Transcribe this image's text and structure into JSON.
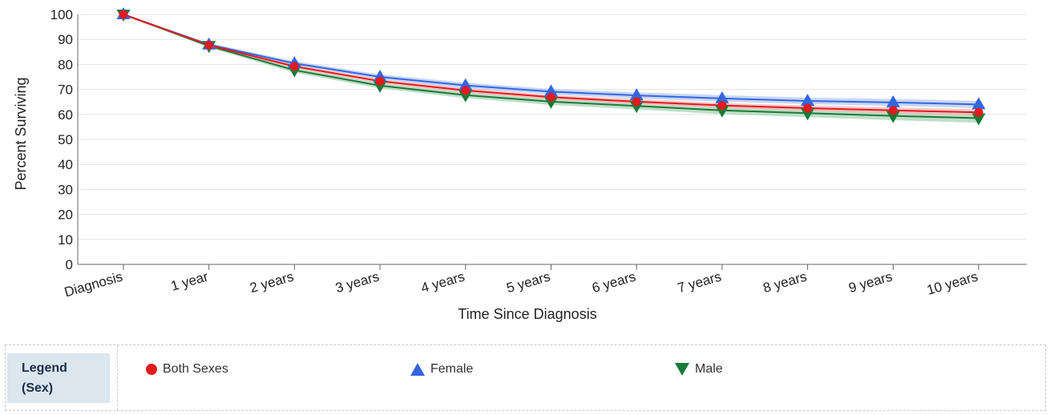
{
  "chart_data": {
    "type": "line",
    "xlabel": "Time Since Diagnosis",
    "ylabel": "Percent Surviving",
    "ylim": [
      0,
      100
    ],
    "yticks": [
      0,
      10,
      20,
      30,
      40,
      50,
      60,
      70,
      80,
      90,
      100
    ],
    "categories": [
      "Diagnosis",
      "1 year",
      "2 years",
      "3 years",
      "4 years",
      "5 years",
      "6 years",
      "7 years",
      "8 years",
      "9 years",
      "10 years"
    ],
    "grid": true,
    "series": [
      {
        "name": "Both Sexes",
        "marker": "circle",
        "color": "#e41a1c",
        "band_color": "#f4b6b6",
        "values": [
          100,
          87.7,
          79.2,
          73.3,
          69.6,
          66.9,
          65.1,
          63.6,
          62.5,
          61.6,
          60.8
        ],
        "lower": [
          100,
          87.2,
          78.5,
          72.5,
          68.7,
          66.0,
          64.1,
          62.6,
          61.4,
          60.4,
          59.6
        ],
        "upper": [
          100,
          88.2,
          79.9,
          74.1,
          70.5,
          67.8,
          66.1,
          64.6,
          63.6,
          62.8,
          62.0
        ]
      },
      {
        "name": "Female",
        "marker": "triangle-up",
        "color": "#3366e0",
        "band_color": "#b4c8f0",
        "values": [
          100,
          87.9,
          80.4,
          75.0,
          71.6,
          69.1,
          67.6,
          66.4,
          65.4,
          64.8,
          64.0
        ],
        "lower": [
          100,
          87.3,
          79.5,
          74.0,
          70.5,
          68.0,
          66.4,
          65.1,
          64.1,
          63.4,
          62.6
        ],
        "upper": [
          100,
          88.5,
          81.3,
          76.0,
          72.7,
          70.2,
          68.8,
          67.7,
          66.7,
          66.2,
          65.4
        ]
      },
      {
        "name": "Male",
        "marker": "triangle-down",
        "color": "#1a7a3a",
        "band_color": "#a9d4b4",
        "values": [
          100,
          87.4,
          77.7,
          71.5,
          67.7,
          65.1,
          63.4,
          61.6,
          60.5,
          59.4,
          58.5
        ],
        "lower": [
          100,
          86.7,
          76.7,
          70.4,
          66.5,
          63.8,
          62.0,
          60.1,
          58.9,
          57.7,
          56.7
        ],
        "upper": [
          100,
          88.1,
          78.7,
          72.6,
          68.9,
          66.4,
          64.8,
          63.1,
          62.1,
          61.1,
          60.3
        ]
      }
    ]
  },
  "legend": {
    "title_line1": "Legend",
    "title_line2": "(Sex)",
    "items": [
      "Both Sexes",
      "Female",
      "Male"
    ]
  }
}
